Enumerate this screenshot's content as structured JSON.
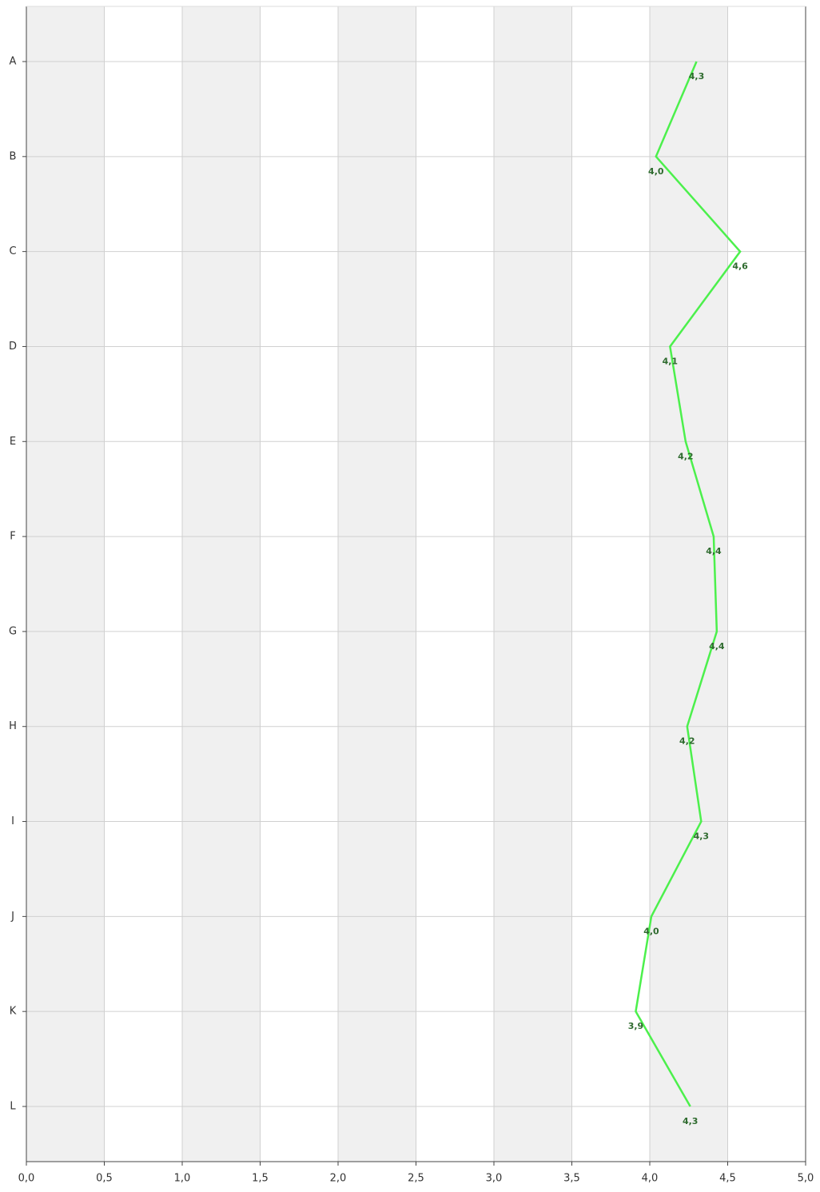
{
  "chart_data": {
    "type": "line",
    "orientation": "horizontal",
    "categories": [
      "A",
      "B",
      "C",
      "D",
      "E",
      "F",
      "G",
      "H",
      "I",
      "J",
      "K",
      "L"
    ],
    "series": [
      {
        "color": "#4cf04c",
        "values": [
          4.3,
          4.04,
          4.58,
          4.13,
          4.23,
          4.41,
          4.43,
          4.24,
          4.33,
          4.01,
          3.91,
          4.26
        ],
        "value_labels": [
          "4,3",
          "4,0",
          "4,6",
          "4,1",
          "4,2",
          "4,4",
          "4,4",
          "4,2",
          "4,3",
          "4,0",
          "3,9",
          "4,3"
        ]
      }
    ],
    "xlim": [
      0,
      5
    ],
    "xticks": [
      {
        "value": 0,
        "label": "0,0"
      },
      {
        "value": 0.5,
        "label": "0,5"
      },
      {
        "value": 1,
        "label": "1,0"
      },
      {
        "value": 1.5,
        "label": "1,5"
      },
      {
        "value": 2,
        "label": "2,0"
      },
      {
        "value": 2.5,
        "label": "2,5"
      },
      {
        "value": 3,
        "label": "3,0"
      },
      {
        "value": 3.5,
        "label": "3,5"
      },
      {
        "value": 4,
        "label": "4,0"
      },
      {
        "value": 4.5,
        "label": "4,5"
      },
      {
        "value": 5,
        "label": "5,0"
      }
    ],
    "grid": true,
    "band_color": "#f0f0f0"
  }
}
